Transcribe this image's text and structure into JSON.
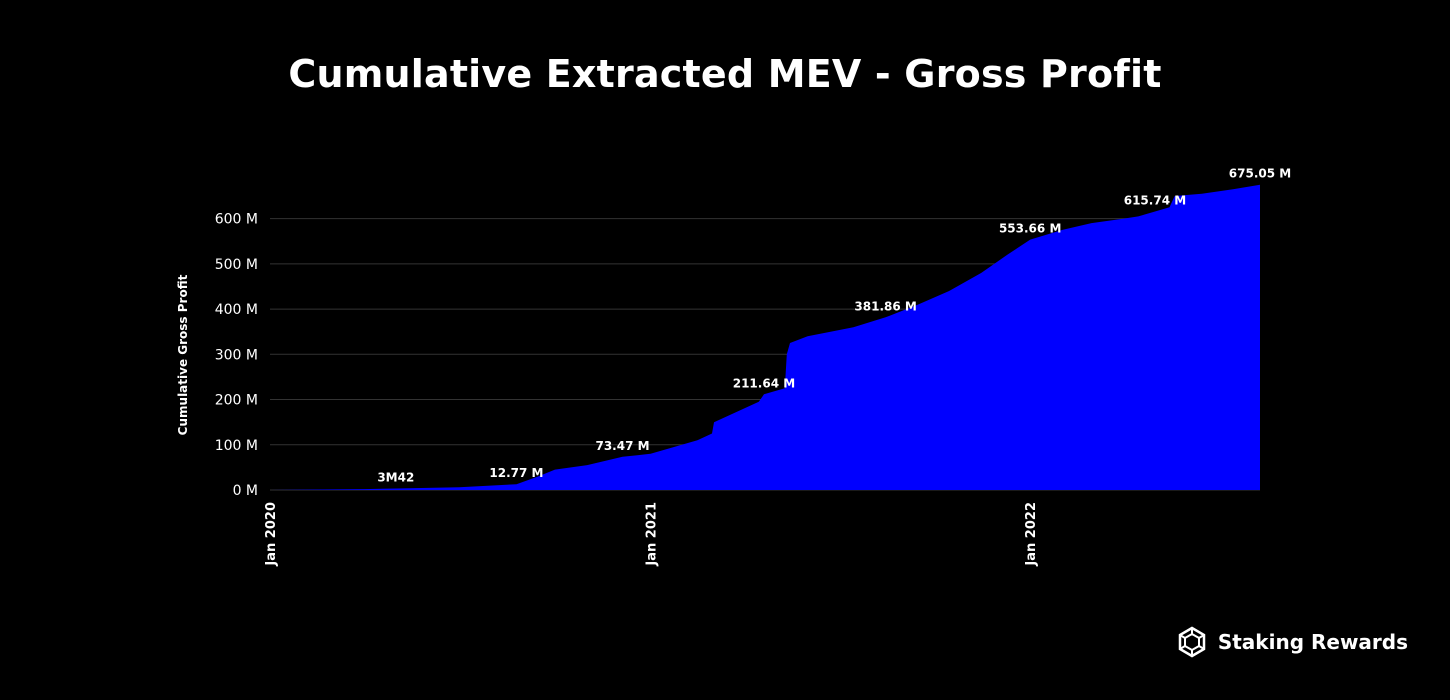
{
  "colors": {
    "background": "#000000",
    "area": "#0000ff",
    "text": "#ffffff",
    "grid": "#333333"
  },
  "brand": {
    "name": "Staking Rewards",
    "icon": "staking-rewards-logo-icon"
  },
  "chart_data": {
    "type": "area",
    "title": "Cumulative Extracted MEV - Gross Profit",
    "xlabel": "",
    "ylabel": "Cumulative Gross Profit",
    "ylim": [
      0,
      650
    ],
    "y_ticks": [
      0,
      100,
      200,
      300,
      400,
      500,
      600
    ],
    "y_tick_labels": [
      "0 M",
      "100 M",
      "200 M",
      "300 M",
      "400 M",
      "500 M",
      "600 M"
    ],
    "x_range": [
      "2020-01-01",
      "2022-08-10"
    ],
    "x_ticks": [
      "2020-01-01",
      "2021-01-01",
      "2022-01-01"
    ],
    "x_tick_labels": [
      "Jan 2020",
      "Jan 2021",
      "Jan 2022"
    ],
    "grid": true,
    "series": [
      {
        "x": [
          "2020-01-01",
          "2020-04-01",
          "2020-05-01",
          "2020-07-01",
          "2020-08-25",
          "2020-09-15",
          "2020-10-01",
          "2020-11-01",
          "2020-12-05",
          "2021-01-01",
          "2021-02-15",
          "2021-03-01",
          "2021-03-03",
          "2021-04-15",
          "2021-04-20",
          "2021-05-10",
          "2021-05-12",
          "2021-05-15",
          "2021-06-01",
          "2021-07-15",
          "2021-08-15",
          "2021-09-15",
          "2021-10-15",
          "2021-11-15",
          "2021-12-10",
          "2022-01-01",
          "2022-02-01",
          "2022-03-01",
          "2022-04-01",
          "2022-04-15",
          "2022-05-01",
          "2022-05-15",
          "2022-05-20",
          "2022-06-15",
          "2022-07-15",
          "2022-08-10"
        ],
        "values": [
          0,
          2,
          3.42,
          6,
          12.77,
          30,
          45,
          55,
          73.47,
          80,
          110,
          125,
          150,
          195,
          211.64,
          225,
          300,
          325,
          340,
          360,
          381.86,
          410,
          440,
          480,
          520,
          553.66,
          575,
          590,
          600,
          605,
          615.74,
          625,
          650,
          655,
          665,
          675.05
        ]
      }
    ],
    "annotations": [
      {
        "x": "2020-05-01",
        "y": 3.42,
        "label": "3M42"
      },
      {
        "x": "2020-08-25",
        "y": 12.77,
        "label": "12.77 M"
      },
      {
        "x": "2020-12-05",
        "y": 73.47,
        "label": "73.47 M"
      },
      {
        "x": "2021-04-20",
        "y": 211.64,
        "label": "211.64 M"
      },
      {
        "x": "2021-08-15",
        "y": 381.86,
        "label": "381.86 M"
      },
      {
        "x": "2022-01-01",
        "y": 553.66,
        "label": "553.66 M"
      },
      {
        "x": "2022-05-01",
        "y": 615.74,
        "label": "615.74 M"
      },
      {
        "x": "2022-08-10",
        "y": 675.05,
        "label": "675.05 M"
      }
    ]
  }
}
